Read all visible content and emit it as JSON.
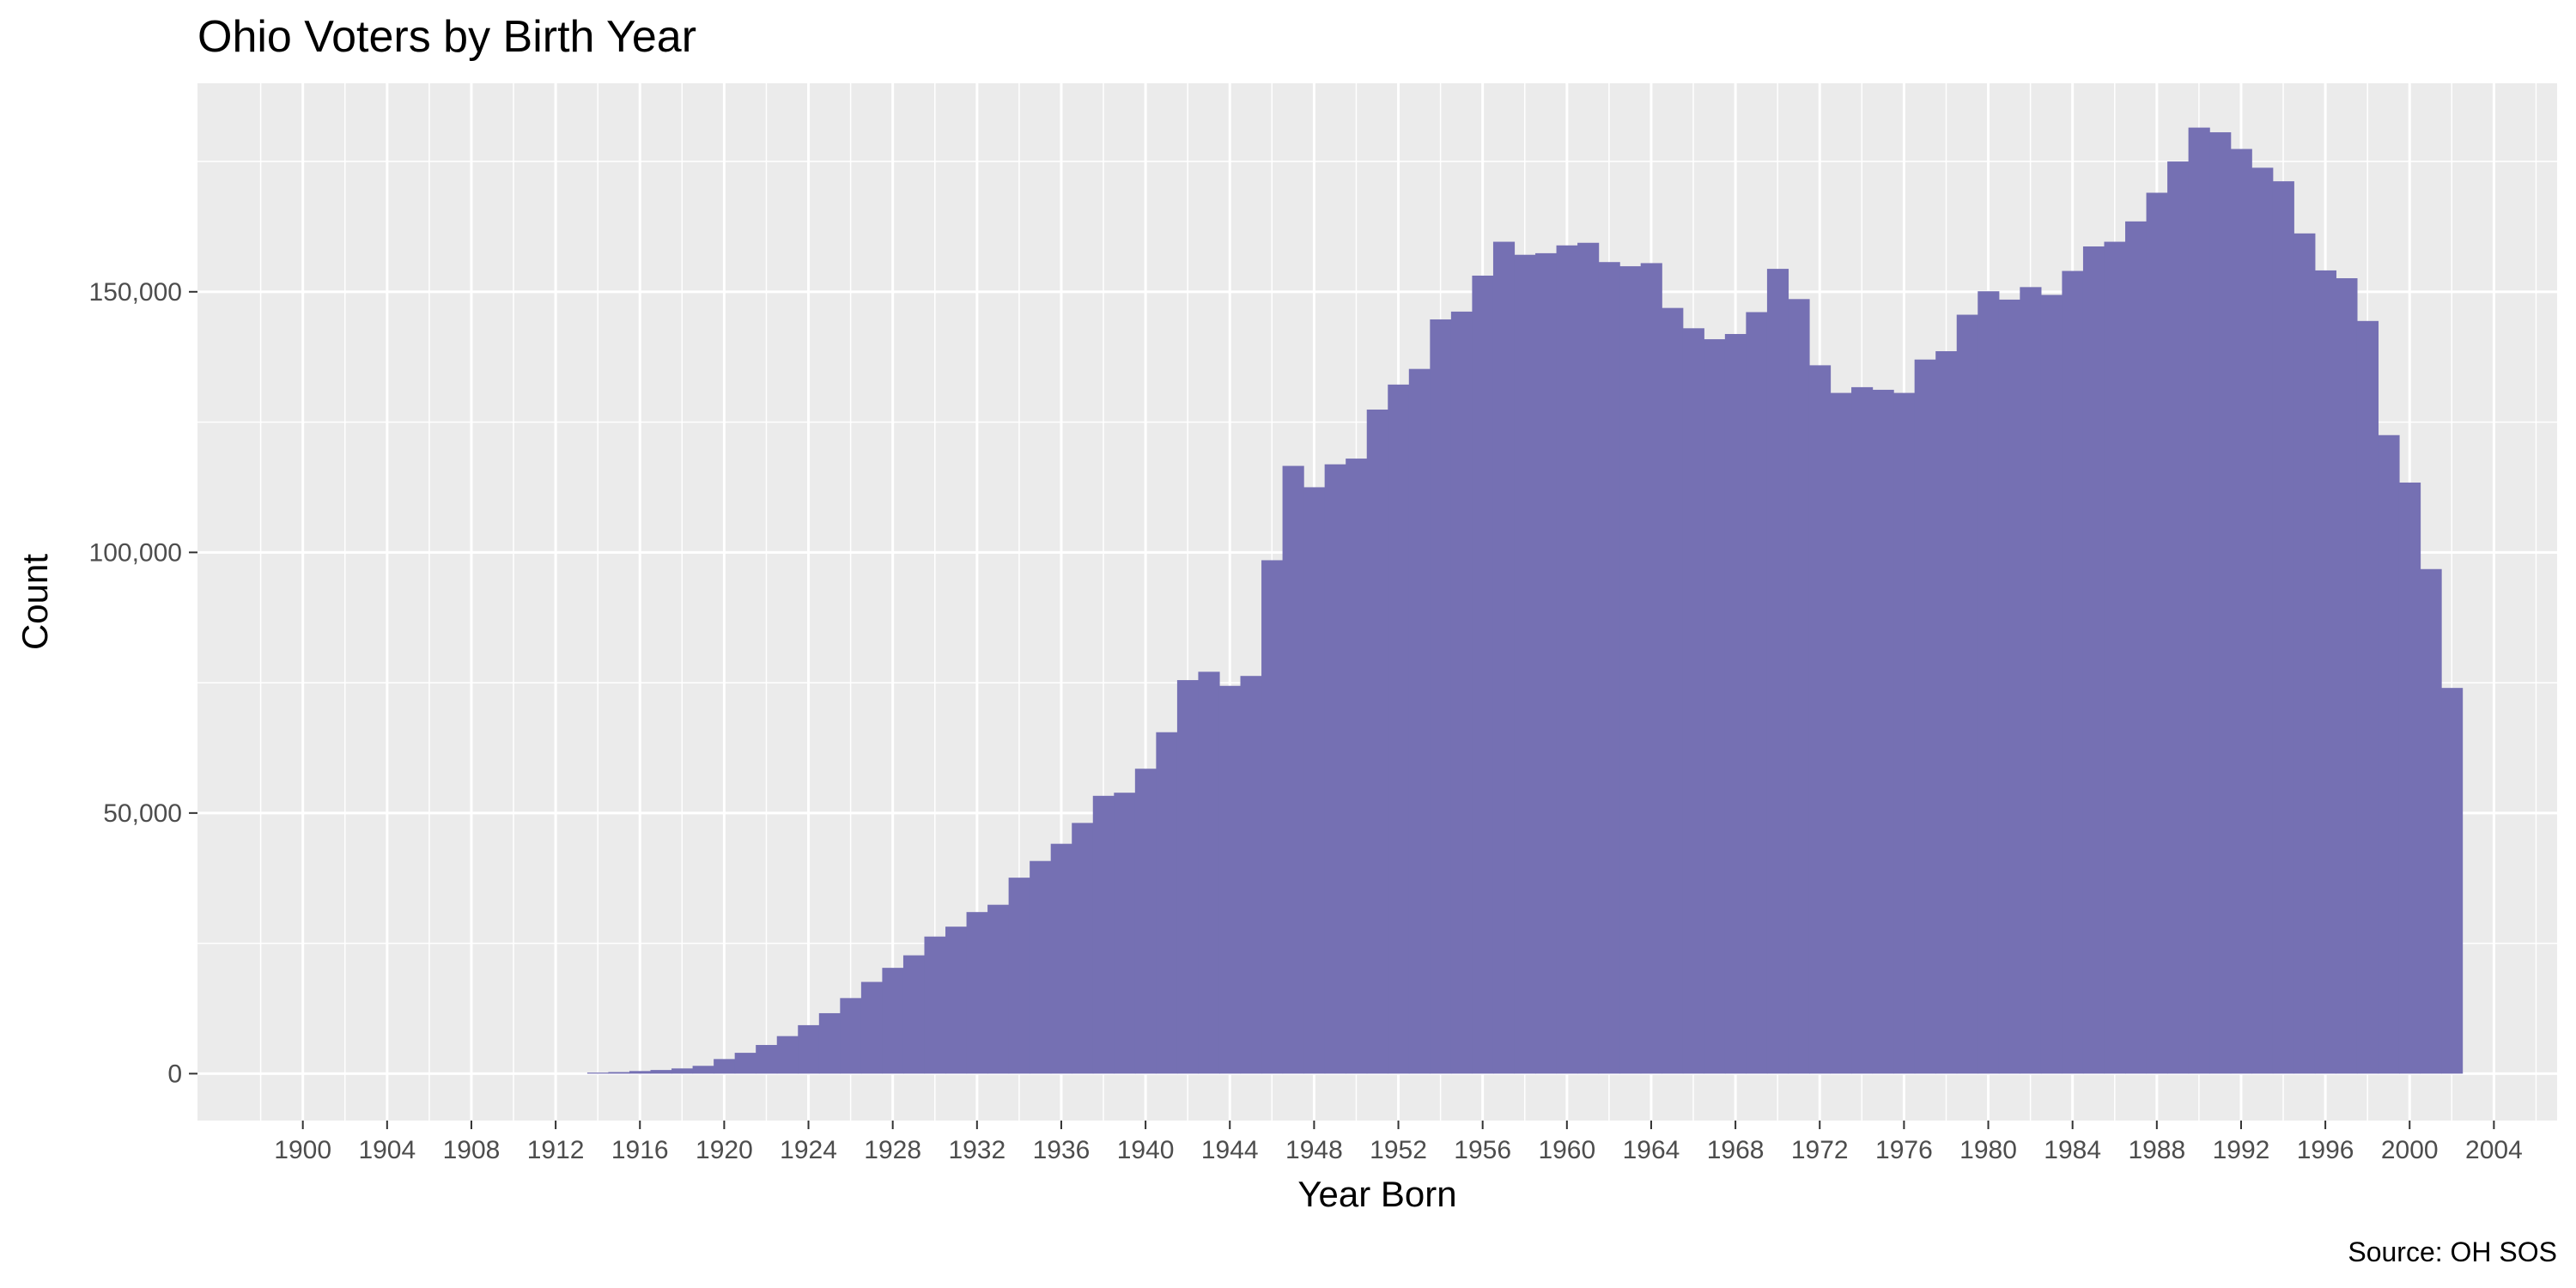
{
  "chart_data": {
    "type": "bar",
    "title": "Ohio Voters by Birth Year",
    "xlabel": "Year Born",
    "ylabel": "Count",
    "caption": "Source: OH SOS",
    "bar_color": "#7570b3",
    "panel_color": "#ebebeb",
    "grid_color": "#ffffff",
    "grid": true,
    "legend": "none",
    "xlim": [
      1895,
      2007
    ],
    "ylim": [
      -9000,
      190000
    ],
    "x_ticks": [
      1900,
      1904,
      1908,
      1912,
      1916,
      1920,
      1924,
      1928,
      1932,
      1936,
      1940,
      1944,
      1948,
      1952,
      1956,
      1960,
      1964,
      1968,
      1972,
      1976,
      1980,
      1984,
      1988,
      1992,
      1996,
      2000,
      2004
    ],
    "y_ticks": [
      0,
      50000,
      100000,
      150000
    ],
    "y_tick_labels": [
      "0",
      "50,000",
      "100,000",
      "150,000"
    ],
    "categories": [
      1914,
      1915,
      1916,
      1917,
      1918,
      1919,
      1920,
      1921,
      1922,
      1923,
      1924,
      1925,
      1926,
      1927,
      1928,
      1929,
      1930,
      1931,
      1932,
      1933,
      1934,
      1935,
      1936,
      1937,
      1938,
      1939,
      1940,
      1941,
      1942,
      1943,
      1944,
      1945,
      1946,
      1947,
      1948,
      1949,
      1950,
      1951,
      1952,
      1953,
      1954,
      1955,
      1956,
      1957,
      1958,
      1959,
      1960,
      1961,
      1962,
      1963,
      1964,
      1965,
      1966,
      1967,
      1968,
      1969,
      1970,
      1971,
      1972,
      1973,
      1974,
      1975,
      1976,
      1977,
      1978,
      1979,
      1980,
      1981,
      1982,
      1983,
      1984,
      1985,
      1986,
      1987,
      1988,
      1989,
      1990,
      1991,
      1992,
      1993,
      1994,
      1995,
      1996,
      1997,
      1998,
      1999,
      2000,
      2001,
      2002
    ],
    "values": [
      200,
      300,
      500,
      700,
      1000,
      1500,
      2800,
      4000,
      5500,
      7200,
      9300,
      11600,
      14500,
      17600,
      20300,
      22700,
      26300,
      28200,
      31000,
      32400,
      37600,
      40800,
      44100,
      48100,
      53300,
      53900,
      58500,
      65500,
      75500,
      77100,
      74400,
      76300,
      98500,
      116600,
      112500,
      116900,
      118000,
      127400,
      132200,
      135200,
      144700,
      146200,
      153100,
      159600,
      157100,
      157400,
      158900,
      159400,
      155700,
      154900,
      155500,
      146900,
      143000,
      140900,
      141900,
      146100,
      154400,
      148600,
      135900,
      130600,
      131700,
      131200,
      130600,
      137000,
      138600,
      145600,
      150100,
      148500,
      150900,
      149400,
      154000,
      158700,
      159600,
      163500,
      169000,
      175000,
      181500,
      180600,
      177400,
      173800,
      171200,
      161200,
      154100,
      152600,
      144400,
      122500,
      113400,
      96800,
      74000
    ]
  }
}
